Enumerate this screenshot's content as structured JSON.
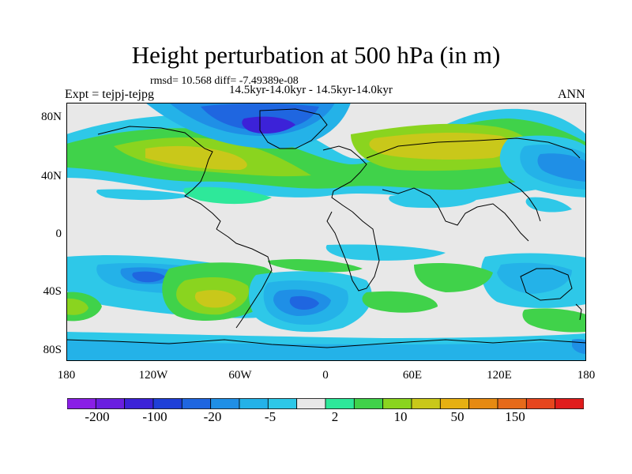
{
  "title": "Height perturbation at 500 hPa (in m)",
  "stats_line": "rmsd= 10.568 diff= -7.49389e-08",
  "period_line": "14.5kyr-14.0kyr - 14.5kyr-14.0kyr",
  "experiment_label": "Expt = tejpj-tejpg",
  "season_label": "ANN",
  "latitude_labels": [
    "80N",
    "40N",
    "0",
    "40S",
    "80S"
  ],
  "longitude_labels": [
    "180",
    "120W",
    "60W",
    "0",
    "60E",
    "120E",
    "180"
  ],
  "colorbar": {
    "labels": [
      "-200",
      "-100",
      "-20",
      "-5",
      "2",
      "10",
      "50",
      "150"
    ],
    "colors": [
      "#8a1fe6",
      "#6a1fe0",
      "#3c22d8",
      "#1f3fd8",
      "#1f66e0",
      "#1f8fe6",
      "#24b2e8",
      "#2ec8e8",
      "#e8e8e8",
      "#2ee89a",
      "#40d24a",
      "#8ad41f",
      "#c9c81a",
      "#e6b012",
      "#e68a12",
      "#e66a1a",
      "#e6461e",
      "#e01c1c"
    ]
  }
}
